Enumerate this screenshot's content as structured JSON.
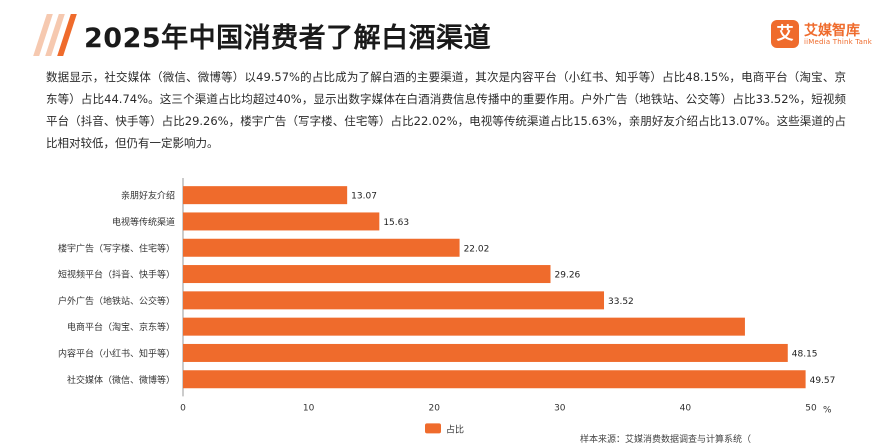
{
  "header": {
    "title": "2025年中国消费者了解白酒渠道",
    "logo_name": "艾媒智库",
    "logo_mark": "艾",
    "logo_sub": "iiMedia Think Tank"
  },
  "summary": "数据显示，社交媒体（微信、微博等）以49.57%的占比成为了解白酒的主要渠道，其次是内容平台（小红书、知乎等）占比48.15%，电商平台（淘宝、京东等）占比44.74%。这三个渠道占比均超过40%，显示出数字媒体在白酒消费信息传播中的重要作用。户外广告（地铁站、公交等）占比33.52%，短视频平台（抖音、快手等）占比29.26%，楼宇广告（写字楼、住宅等）占比22.02%，电视等传统渠道占比15.63%，亲朋好友介绍占比13.07%。这些渠道的占比相对较低，但仍有一定影响力。",
  "footer": "样本来源：艾媒消费数据调查与计算系统（",
  "colors": {
    "bar": "#ef6b2c",
    "accent": "#ef6b2c",
    "stripe": "#f6c9b0"
  },
  "chart_data": {
    "type": "bar",
    "orientation": "horizontal",
    "categories": [
      "亲朋好友介绍",
      "电视等传统渠道",
      "楼宇广告（写字楼、住宅等）",
      "短视频平台（抖音、快手等）",
      "户外广告（地铁站、公交等）",
      "电商平台（淘宝、京东等）",
      "内容平台（小红书、知乎等）",
      "社交媒体（微信、微博等）"
    ],
    "values": [
      13.07,
      15.63,
      22.02,
      29.26,
      33.52,
      44.74,
      48.15,
      49.57
    ],
    "value_labels": [
      "13.07",
      "15.63",
      "22.02",
      "29.26",
      "33.52",
      "",
      "48.15",
      "49.57"
    ],
    "xlim": [
      0,
      50
    ],
    "xticks": [
      0,
      10,
      20,
      30,
      40,
      50
    ],
    "xunit": "%",
    "legend": {
      "labels": [
        "占比"
      ],
      "position": "bottom"
    },
    "grid": false
  }
}
